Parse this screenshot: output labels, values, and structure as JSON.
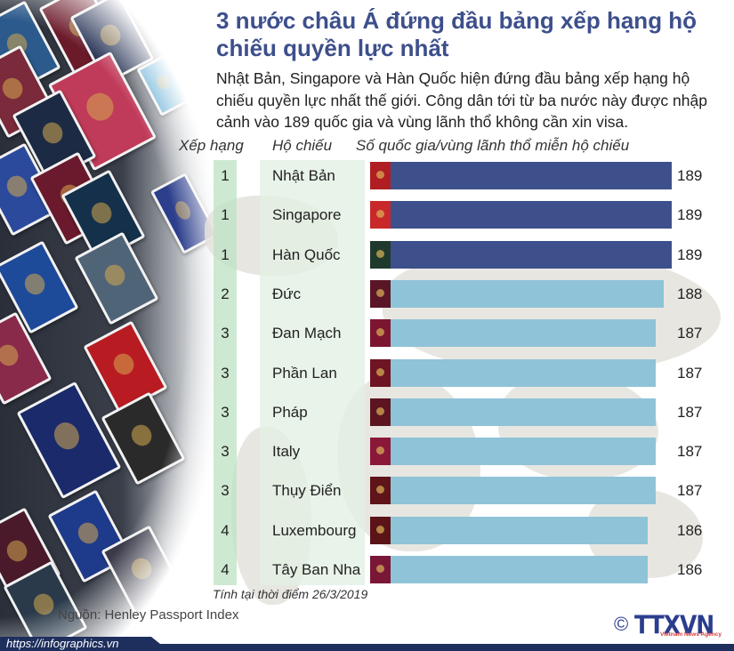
{
  "title": "3 nước châu Á đứng đầu bảng xếp hạng hộ chiếu quyền lực nhất",
  "lead": "Nhật Bản, Singapore và Hàn Quốc hiện đứng đầu bảng xếp hạng hộ chiếu quyền lực nhất thế giới. Công dân tới từ ba nước này được nhập cảnh vào 189 quốc gia và vùng lãnh thổ không cần xin visa.",
  "headers": {
    "rank": "Xếp hạng",
    "passport": "Hộ chiếu",
    "count": "Số quốc gia/vùng lãnh thổ miễn hộ chiếu"
  },
  "rows": [
    {
      "rank": "1",
      "name": "Nhật Bản",
      "value": "189"
    },
    {
      "rank": "1",
      "name": "Singapore",
      "value": "189"
    },
    {
      "rank": "1",
      "name": "Hàn Quốc",
      "value": "189"
    },
    {
      "rank": "2",
      "name": "Đức",
      "value": "188"
    },
    {
      "rank": "3",
      "name": "Đan Mạch",
      "value": "187"
    },
    {
      "rank": "3",
      "name": "Phần Lan",
      "value": "187"
    },
    {
      "rank": "3",
      "name": "Pháp",
      "value": "187"
    },
    {
      "rank": "3",
      "name": "Italy",
      "value": "187"
    },
    {
      "rank": "3",
      "name": "Thụy Điển",
      "value": "187"
    },
    {
      "rank": "4",
      "name": "Luxembourg",
      "value": "186"
    },
    {
      "rank": "4",
      "name": "Tây Ban Nha",
      "value": "186"
    }
  ],
  "colors": {
    "title": "#3d4f8b",
    "bar_top": "#3e508b",
    "bar_other": "#8fc3d8",
    "rank_column": "#bee1c3",
    "name_column": "#e2f0e4",
    "footer": "#1e2f5e"
  },
  "passport_colors": [
    "#b01e23",
    "#c8282a",
    "#1f3a2c",
    "#5a1626",
    "#7c1630",
    "#6e1422",
    "#5c1420",
    "#8a1838",
    "#5e1418",
    "#5a1418",
    "#7a1636"
  ],
  "note": "Tính tại thời điểm 26/3/2019",
  "source": "Nguồn: Henley Passport Index",
  "copyright_symbol": "©",
  "logo": {
    "text": "TTXVN",
    "subtitle": "Vietnam News Agency"
  },
  "footer_url": "https://infographics.vn",
  "chart_data": {
    "type": "bar",
    "orientation": "horizontal",
    "title": "3 nước châu Á đứng đầu bảng xếp hạng hộ chiếu quyền lực nhất",
    "subtitle": "Số quốc gia/vùng lãnh thổ miễn hộ chiếu",
    "categories": [
      "Nhật Bản",
      "Singapore",
      "Hàn Quốc",
      "Đức",
      "Đan Mạch",
      "Phần Lan",
      "Pháp",
      "Italy",
      "Thụy Điển",
      "Luxembourg",
      "Tây Ban Nha"
    ],
    "ranks": [
      1,
      1,
      1,
      2,
      3,
      3,
      3,
      3,
      3,
      4,
      4
    ],
    "values": [
      189,
      189,
      189,
      188,
      187,
      187,
      187,
      187,
      187,
      186,
      186
    ],
    "xlabel": "",
    "ylabel": "",
    "grid": false,
    "legend": "none",
    "annotation": "Tính tại thời điểm 26/3/2019",
    "source": "Henley Passport Index"
  }
}
